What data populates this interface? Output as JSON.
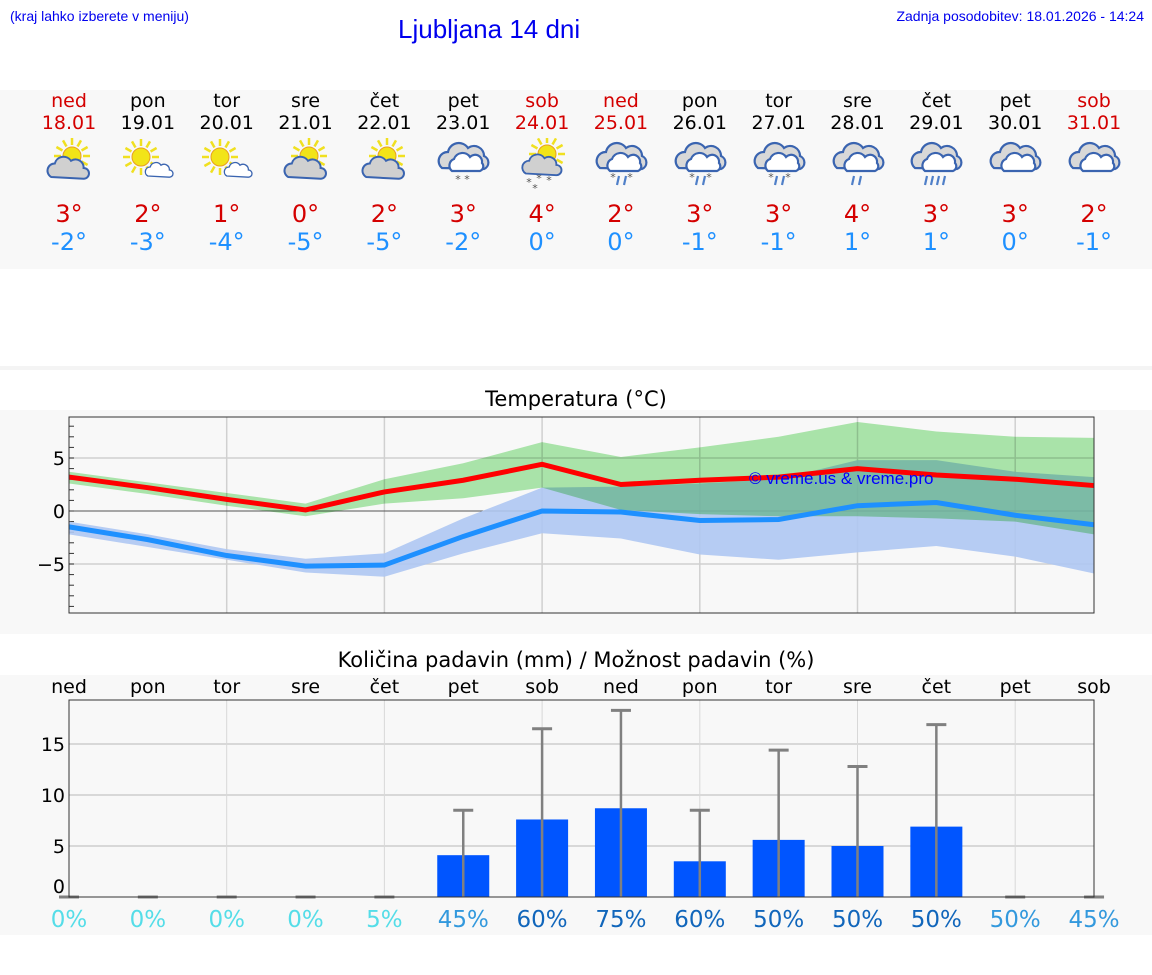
{
  "header": {
    "hint": "(kraj lahko izberete v meniju)",
    "title": "Ljubljana 14 dni",
    "updated": "Zadnja posodobitev: 18.01.2026 - 14:24"
  },
  "days": [
    {
      "name": "ned",
      "date": "18.01",
      "weekend": true,
      "icon": "sun-cloud",
      "max": "3°",
      "min": "-2°"
    },
    {
      "name": "pon",
      "date": "19.01",
      "weekend": false,
      "icon": "sun-small-cloud",
      "max": "2°",
      "min": "-3°"
    },
    {
      "name": "tor",
      "date": "20.01",
      "weekend": false,
      "icon": "sun-small-cloud",
      "max": "1°",
      "min": "-4°"
    },
    {
      "name": "sre",
      "date": "21.01",
      "weekend": false,
      "icon": "sun-cloud",
      "max": "0°",
      "min": "-5°"
    },
    {
      "name": "čet",
      "date": "22.01",
      "weekend": false,
      "icon": "sun-cloud",
      "max": "2°",
      "min": "-5°"
    },
    {
      "name": "pet",
      "date": "23.01",
      "weekend": false,
      "icon": "cloud-snow",
      "max": "3°",
      "min": "-2°"
    },
    {
      "name": "sob",
      "date": "24.01",
      "weekend": true,
      "icon": "sun-cloud-snow",
      "max": "4°",
      "min": "0°"
    },
    {
      "name": "ned",
      "date": "25.01",
      "weekend": true,
      "icon": "cloud-sleet",
      "max": "2°",
      "min": "0°"
    },
    {
      "name": "pon",
      "date": "26.01",
      "weekend": false,
      "icon": "cloud-sleet",
      "max": "3°",
      "min": "-1°"
    },
    {
      "name": "tor",
      "date": "27.01",
      "weekend": false,
      "icon": "cloud-sleet",
      "max": "3°",
      "min": "-1°"
    },
    {
      "name": "sre",
      "date": "28.01",
      "weekend": false,
      "icon": "cloud-rain",
      "max": "4°",
      "min": "1°"
    },
    {
      "name": "čet",
      "date": "29.01",
      "weekend": false,
      "icon": "cloud-heavy-rain",
      "max": "3°",
      "min": "1°"
    },
    {
      "name": "pet",
      "date": "30.01",
      "weekend": false,
      "icon": "cloud",
      "max": "3°",
      "min": "0°"
    },
    {
      "name": "sob",
      "date": "31.01",
      "weekend": true,
      "icon": "cloud",
      "max": "2°",
      "min": "-1°"
    }
  ],
  "colors": {
    "max": "#ff0000",
    "min": "#1e90ff",
    "max_band": "#aeeaae",
    "min_band": "#aec6f2",
    "overlap": "#7cc8a8",
    "bar": "#0055ff",
    "error": "#808080",
    "weekend": "#d40000"
  },
  "chart_data": [
    {
      "type": "line",
      "title": "Temperatura (°C)",
      "watermark": "© vreme.us & vreme.pro",
      "ylim": [
        -9.5,
        8.8
      ],
      "yticks": [
        {
          "v": 5,
          "label": "5"
        },
        {
          "v": 0,
          "label": "0"
        },
        {
          "v": -5,
          "label": "−5"
        }
      ],
      "grid": true,
      "series": [
        {
          "key": "max",
          "values": [
            3.2,
            2.2,
            1.1,
            0.1,
            1.8,
            2.9,
            4.4,
            2.5,
            2.9,
            3.2,
            4.0,
            3.4,
            3.0,
            2.4
          ],
          "band_low": [
            2.6,
            1.6,
            0.5,
            -0.5,
            0.7,
            1.2,
            2.2,
            0.1,
            -0.3,
            -0.5,
            -0.5,
            -0.7,
            -1.0,
            -2.2
          ],
          "band_high": [
            3.7,
            2.7,
            1.7,
            0.7,
            3.0,
            4.5,
            6.5,
            5.1,
            6.0,
            7.0,
            8.4,
            7.5,
            7.0,
            6.9
          ]
        },
        {
          "key": "min",
          "values": [
            -1.5,
            -2.7,
            -4.2,
            -5.2,
            -5.1,
            -2.4,
            0.0,
            -0.1,
            -0.9,
            -0.8,
            0.5,
            0.8,
            -0.4,
            -1.3
          ],
          "band_low": [
            -2.2,
            -3.4,
            -4.6,
            -5.8,
            -6.2,
            -4.0,
            -2.1,
            -2.6,
            -4.1,
            -4.6,
            -3.9,
            -3.3,
            -4.3,
            -5.9
          ],
          "band_high": [
            -1.0,
            -2.2,
            -3.6,
            -4.5,
            -4.0,
            -0.7,
            2.2,
            2.3,
            2.6,
            3.0,
            4.8,
            4.8,
            3.7,
            3.2
          ]
        }
      ]
    },
    {
      "type": "bar",
      "title": "Količina padavin (mm) / Možnost padavin (%)",
      "categories": [
        "ned",
        "pon",
        "tor",
        "sre",
        "čet",
        "pet",
        "sob",
        "ned",
        "pon",
        "tor",
        "sre",
        "čet",
        "pet",
        "sob"
      ],
      "values": [
        0,
        0,
        0,
        0,
        0,
        4.1,
        7.6,
        8.7,
        3.5,
        5.6,
        5.0,
        6.9,
        0,
        0
      ],
      "error_high": [
        0,
        0,
        0,
        0,
        0,
        8.5,
        16.5,
        18.3,
        8.5,
        14.4,
        12.8,
        16.9,
        0,
        0
      ],
      "probability": [
        "0%",
        "0%",
        "0%",
        "0%",
        "5%",
        "45%",
        "60%",
        "75%",
        "60%",
        "50%",
        "50%",
        "50%",
        "50%",
        "45%"
      ],
      "probability_colors": [
        "#55dde8",
        "#55dde8",
        "#55dde8",
        "#55dde8",
        "#55dde8",
        "#3399dd",
        "#1166bb",
        "#1166bb",
        "#1166bb",
        "#1166bb",
        "#1166bb",
        "#1166bb",
        "#3399dd",
        "#3399dd"
      ],
      "ylim": [
        0,
        19.3
      ],
      "yticks": [
        {
          "v": 0,
          "label": "0"
        },
        {
          "v": 5,
          "label": "5"
        },
        {
          "v": 10,
          "label": "10"
        },
        {
          "v": 15,
          "label": "15"
        }
      ],
      "grid": true
    }
  ]
}
